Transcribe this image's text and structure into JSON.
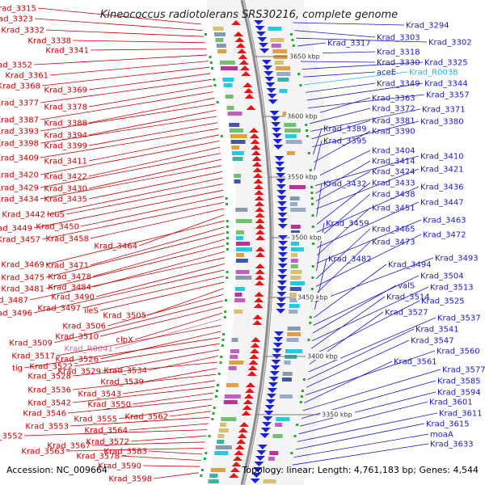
{
  "title": "Kineococcus radiotolerans SRS30216, complete genome",
  "accession_text": "Accession: NC_009664",
  "summary_text": "Topology: linear; Length: 4,761,183 bp; Genes: 4,544",
  "colors": {
    "left_labels": "#cc0000",
    "right_labels": "#1a1acc",
    "rna_left": "#e060a0",
    "rna_right": "#20b8d8",
    "backbone": "#888888"
  },
  "scale_ticks": [
    {
      "label": "3650 kbp"
    },
    {
      "label": "3600 kbp"
    },
    {
      "label": "3550 kbp"
    },
    {
      "label": "3500 kbp"
    },
    {
      "label": "3450 kbp"
    },
    {
      "label": "3400 kbp"
    },
    {
      "label": "3350 kbp"
    }
  ],
  "left_labels": [
    {
      "text": "Krad_3315"
    },
    {
      "text": "Krad_3323"
    },
    {
      "text": "Krad_3332"
    },
    {
      "text": "Krad_3338"
    },
    {
      "text": "Krad_3341"
    },
    {
      "text": "Krad_3352"
    },
    {
      "text": "Krad_3361"
    },
    {
      "text": "Krad_3368"
    },
    {
      "text": "Krad_3369"
    },
    {
      "text": "Krad_3377"
    },
    {
      "text": "Krad_3378"
    },
    {
      "text": "Krad_3387"
    },
    {
      "text": "Krad_3388"
    },
    {
      "text": "Krad_3393"
    },
    {
      "text": "Krad_3394"
    },
    {
      "text": "Krad_3398"
    },
    {
      "text": "Krad_3399"
    },
    {
      "text": "Krad_3409"
    },
    {
      "text": "Krad_3411"
    },
    {
      "text": "Krad_3420"
    },
    {
      "text": "Krad_3422"
    },
    {
      "text": "Krad_3429"
    },
    {
      "text": "Krad_3430"
    },
    {
      "text": "Krad_3434"
    },
    {
      "text": "Krad_3435"
    },
    {
      "text": "Krad_3442"
    },
    {
      "text": "leuS"
    },
    {
      "text": "Krad_3449"
    },
    {
      "text": "Krad_3450"
    },
    {
      "text": "Krad_3457"
    },
    {
      "text": "Krad_3458"
    },
    {
      "text": "Krad_3464"
    },
    {
      "text": "Krad_3469"
    },
    {
      "text": "Krad_3471"
    },
    {
      "text": "Krad_3475"
    },
    {
      "text": "Krad_3478"
    },
    {
      "text": "Krad_3481"
    },
    {
      "text": "Krad_3484"
    },
    {
      "text": "Krad_3487"
    },
    {
      "text": "Krad_3490"
    },
    {
      "text": "Krad_3496"
    },
    {
      "text": "Krad_3497"
    },
    {
      "text": "ileS"
    },
    {
      "text": "Krad_3505"
    },
    {
      "text": "Krad_3506"
    },
    {
      "text": "Krad_3509"
    },
    {
      "text": "Krad_3510"
    },
    {
      "text": "clpX"
    },
    {
      "text": "Krad_R0041"
    },
    {
      "text": "Krad_3517"
    },
    {
      "text": "Krad_3526"
    },
    {
      "text": "tig"
    },
    {
      "text": "Krad_3522"
    },
    {
      "text": "Krad_3529"
    },
    {
      "text": "Krad_3534"
    },
    {
      "text": "Krad_3528"
    },
    {
      "text": "Krad_3539"
    },
    {
      "text": "Krad_3536"
    },
    {
      "text": "Krad_3543"
    },
    {
      "text": "Krad_3542"
    },
    {
      "text": "Krad_3550"
    },
    {
      "text": "Krad_3546"
    },
    {
      "text": "Krad_3555"
    },
    {
      "text": "Krad_3562"
    },
    {
      "text": "Krad_3553"
    },
    {
      "text": "Krad_3564"
    },
    {
      "text": "Krad_3552"
    },
    {
      "text": "Krad_3572"
    },
    {
      "text": "Krad_3567"
    },
    {
      "text": "Krad_3563"
    },
    {
      "text": "Krad_3583"
    },
    {
      "text": "Krad_3578"
    },
    {
      "text": "Krad_3590"
    },
    {
      "text": "Krad_3598"
    }
  ],
  "right_labels": [
    {
      "text": "Krad_3294"
    },
    {
      "text": "Krad_3303"
    },
    {
      "text": "Krad_3302"
    },
    {
      "text": "Krad_3317"
    },
    {
      "text": "Krad_3318"
    },
    {
      "text": "Krad_3330"
    },
    {
      "text": "Krad_3325"
    },
    {
      "text": "aceE"
    },
    {
      "text": "Krad_R0038"
    },
    {
      "text": "Krad_3349"
    },
    {
      "text": "Krad_3344"
    },
    {
      "text": "Krad_3357"
    },
    {
      "text": "Krad_3363"
    },
    {
      "text": "Krad_3372"
    },
    {
      "text": "Krad_3371"
    },
    {
      "text": "Krad_3381"
    },
    {
      "text": "Krad_3380"
    },
    {
      "text": "Krad_3389"
    },
    {
      "text": "Krad_3390"
    },
    {
      "text": "Krad_3395"
    },
    {
      "text": "Krad_3404"
    },
    {
      "text": "Krad_3410"
    },
    {
      "text": "Krad_3414"
    },
    {
      "text": "Krad_3424"
    },
    {
      "text": "Krad_3421"
    },
    {
      "text": "Krad_3432"
    },
    {
      "text": "Krad_3433"
    },
    {
      "text": "Krad_3436"
    },
    {
      "text": "Krad_3438"
    },
    {
      "text": "Krad_3447"
    },
    {
      "text": "Krad_3451"
    },
    {
      "text": "Krad_3463"
    },
    {
      "text": "Krad_3459"
    },
    {
      "text": "Krad_3465"
    },
    {
      "text": "Krad_3472"
    },
    {
      "text": "Krad_3473"
    },
    {
      "text": "Krad_3493"
    },
    {
      "text": "Krad_3482"
    },
    {
      "text": "Krad_3494"
    },
    {
      "text": "Krad_3504"
    },
    {
      "text": "valS"
    },
    {
      "text": "Krad_3513"
    },
    {
      "text": "Krad_3514"
    },
    {
      "text": "Krad_3525"
    },
    {
      "text": "Krad_3527"
    },
    {
      "text": "Krad_3537"
    },
    {
      "text": "Krad_3541"
    },
    {
      "text": "Krad_3547"
    },
    {
      "text": "Krad_3560"
    },
    {
      "text": "Krad_3561"
    },
    {
      "text": "Krad_3577"
    },
    {
      "text": "Krad_3585"
    },
    {
      "text": "Krad_3594"
    },
    {
      "text": "Krad_3601"
    },
    {
      "text": "Krad_3611"
    },
    {
      "text": "Krad_3615"
    },
    {
      "text": "moaA"
    },
    {
      "text": "Krad_3633"
    }
  ]
}
